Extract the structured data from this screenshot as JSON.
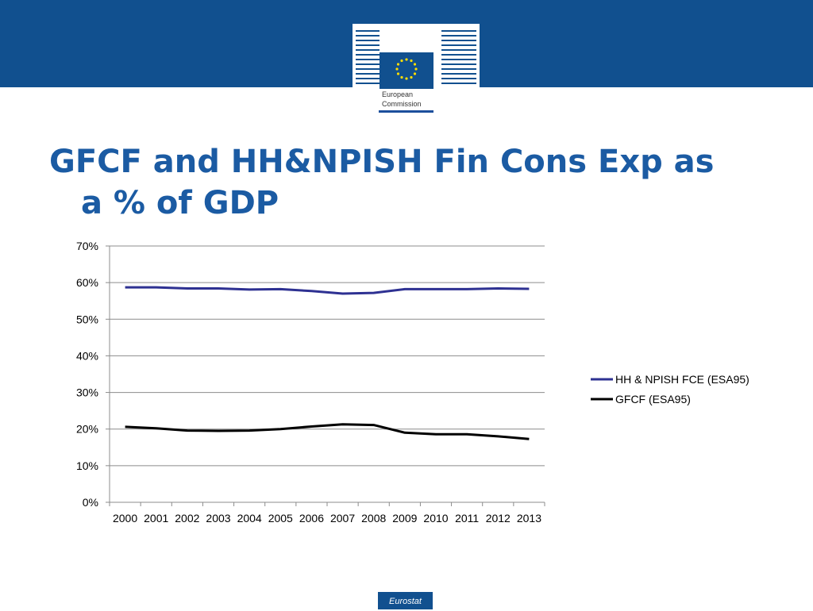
{
  "header": {
    "logo_line1": "European",
    "logo_line2": "Commission",
    "band_color": "#11508f"
  },
  "slide": {
    "title_line1": "GFCF and HH&NPISH Fin Cons Exp as",
    "title_line2": "a % of GDP"
  },
  "chart_data": {
    "type": "line",
    "title": "",
    "xlabel": "",
    "ylabel": "",
    "categories": [
      "2000",
      "2001",
      "2002",
      "2003",
      "2004",
      "2005",
      "2006",
      "2007",
      "2008",
      "2009",
      "2010",
      "2011",
      "2012",
      "2013"
    ],
    "ylim": [
      0,
      70
    ],
    "yticks": [
      "0%",
      "10%",
      "20%",
      "30%",
      "40%",
      "50%",
      "60%",
      "70%"
    ],
    "grid": true,
    "legend_position": "right",
    "series": [
      {
        "name": "HH & NPISH FCE (ESA95)",
        "color": "#2e3192",
        "values": [
          58.7,
          58.7,
          58.4,
          58.4,
          58.1,
          58.2,
          57.7,
          57.0,
          57.2,
          58.2,
          58.2,
          58.2,
          58.4,
          58.3
        ]
      },
      {
        "name": "GFCF (ESA95)",
        "color": "#000000",
        "values": [
          20.6,
          20.2,
          19.6,
          19.5,
          19.6,
          20.0,
          20.7,
          21.3,
          21.1,
          19.0,
          18.6,
          18.6,
          18.0,
          17.3
        ]
      }
    ]
  },
  "footer": {
    "badge": "Eurostat"
  }
}
